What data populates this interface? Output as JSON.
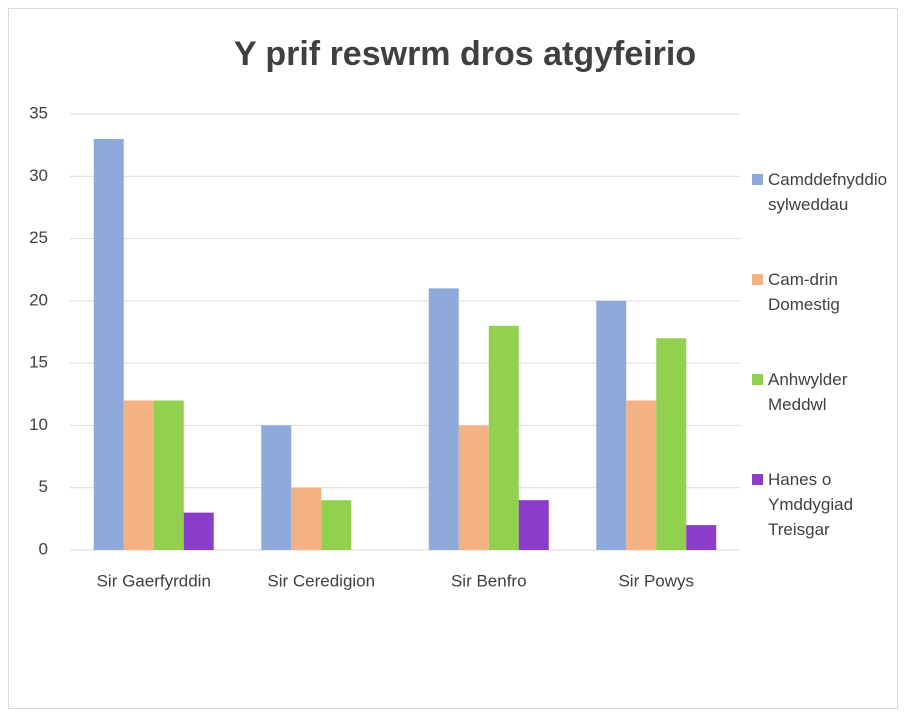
{
  "chart_data": {
    "type": "bar",
    "title": "Y prif reswrm dros atgyfeirio",
    "categories": [
      "Sir Gaerfyrddin",
      "Sir Ceredigion",
      "Sir Benfro",
      "Sir Powys"
    ],
    "series": [
      {
        "name": "Camddefnyddio sylweddau",
        "color": "#8eaadb",
        "values": [
          33,
          10,
          21,
          20
        ]
      },
      {
        "name": "Cam-drin Domestig",
        "color": "#f4b183",
        "values": [
          12,
          5,
          10,
          12
        ]
      },
      {
        "name": "Anhwylder Meddwl",
        "color": "#92d050",
        "values": [
          12,
          4,
          18,
          17
        ]
      },
      {
        "name": "Hanes o Ymddygiad Treisgar",
        "color": "#8b3cc9",
        "values": [
          3,
          0,
          4,
          2
        ]
      }
    ],
    "ylim": [
      0,
      35
    ],
    "yticks": [
      0,
      5,
      10,
      15,
      20,
      25,
      30,
      35
    ],
    "grid": true,
    "legend": "right"
  }
}
